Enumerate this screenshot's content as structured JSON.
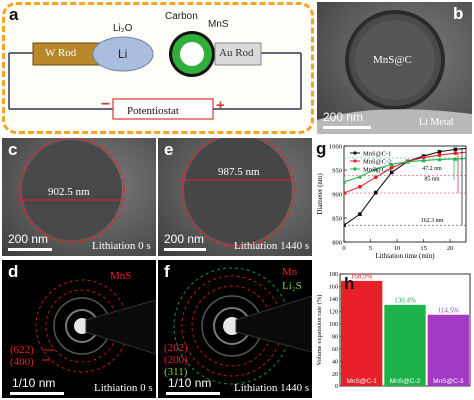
{
  "panel_a": {
    "label": "a",
    "w_rod": "W Rod",
    "li": "Li",
    "li2o": "Li₂O",
    "carbon": "Carbon",
    "mns": "MnS",
    "au_rod": "Au Rod",
    "potentiostat": "Potentiostat",
    "minus": "−",
    "plus": "+"
  },
  "panel_b": {
    "label": "b",
    "particle": "MnS@C",
    "scale": "200 nm",
    "li_metal": "Li Metal"
  },
  "panel_c": {
    "label": "c",
    "diameter": "902.5 nm",
    "scale": "200 nm",
    "caption": "Lithiation 0 s"
  },
  "panel_e": {
    "label": "e",
    "diameter": "987.5 nm",
    "scale": "200 nm",
    "caption": "Lithiation 1440 s"
  },
  "panel_d": {
    "label": "d",
    "phase": "MnS",
    "ring1": "(622)",
    "ring2": "(400)",
    "scale": "1/10 nm",
    "caption": "Lithiation 0 s"
  },
  "panel_f": {
    "label": "f",
    "phase1": "Mn",
    "phase2": "Li₂S",
    "ring1": "(202)",
    "ring2": "(200)",
    "ring3": "(311)",
    "scale": "1/10 nm",
    "caption": "Lithiation 1440 s"
  },
  "colors": {
    "red": "#e8202a",
    "green": "#1db34a",
    "purple": "#a23ac4",
    "orange_dash": "#f2a623",
    "carbon_green": "#2fae3a"
  },
  "chart_data": [
    {
      "type": "line",
      "panel_label": "g",
      "xlabel": "Lithiation time (min)",
      "ylabel": "Diameter (nm)",
      "xlim": [
        0,
        23
      ],
      "ylim": [
        800,
        1000
      ],
      "xticks": [
        0,
        5,
        10,
        15,
        20
      ],
      "yticks": [
        800,
        850,
        900,
        950,
        1000
      ],
      "x": [
        0,
        3,
        6,
        9,
        12,
        15,
        18,
        21,
        24
      ],
      "series": [
        {
          "name": "MnS@C-1",
          "color": "#111111",
          "marker": "square",
          "values": [
            835,
            858,
            903,
            945,
            968,
            979,
            988,
            993,
            996
          ]
        },
        {
          "name": "MnS@C-2",
          "color": "#e8202a",
          "marker": "circle",
          "values": [
            902,
            915,
            935,
            955,
            968,
            976,
            981,
            985,
            988
          ]
        },
        {
          "name": "MnS@C-3",
          "color": "#1db34a",
          "marker": "triangle",
          "values": [
            925,
            936,
            952,
            962,
            967,
            970,
            972,
            973,
            974
          ]
        }
      ],
      "annotations": [
        "47.2 nm",
        "85 nm",
        "162.3 nm"
      ],
      "legend": "top-left"
    },
    {
      "type": "bar",
      "panel_label": "h",
      "categories": [
        "MnS@C-1",
        "MnS@C-2",
        "MnS@C-3"
      ],
      "values": [
        168.9,
        130.4,
        114.5
      ],
      "labels": [
        "168.9%",
        "130.4%",
        "114.5%"
      ],
      "colors": [
        "#e8202a",
        "#1db34a",
        "#a23ac4"
      ],
      "ylabel": "Volume expansion rate (%)",
      "ylim": [
        0,
        180
      ],
      "yticks": [
        0,
        20,
        40,
        60,
        80,
        100,
        120,
        140,
        160,
        180
      ]
    }
  ]
}
